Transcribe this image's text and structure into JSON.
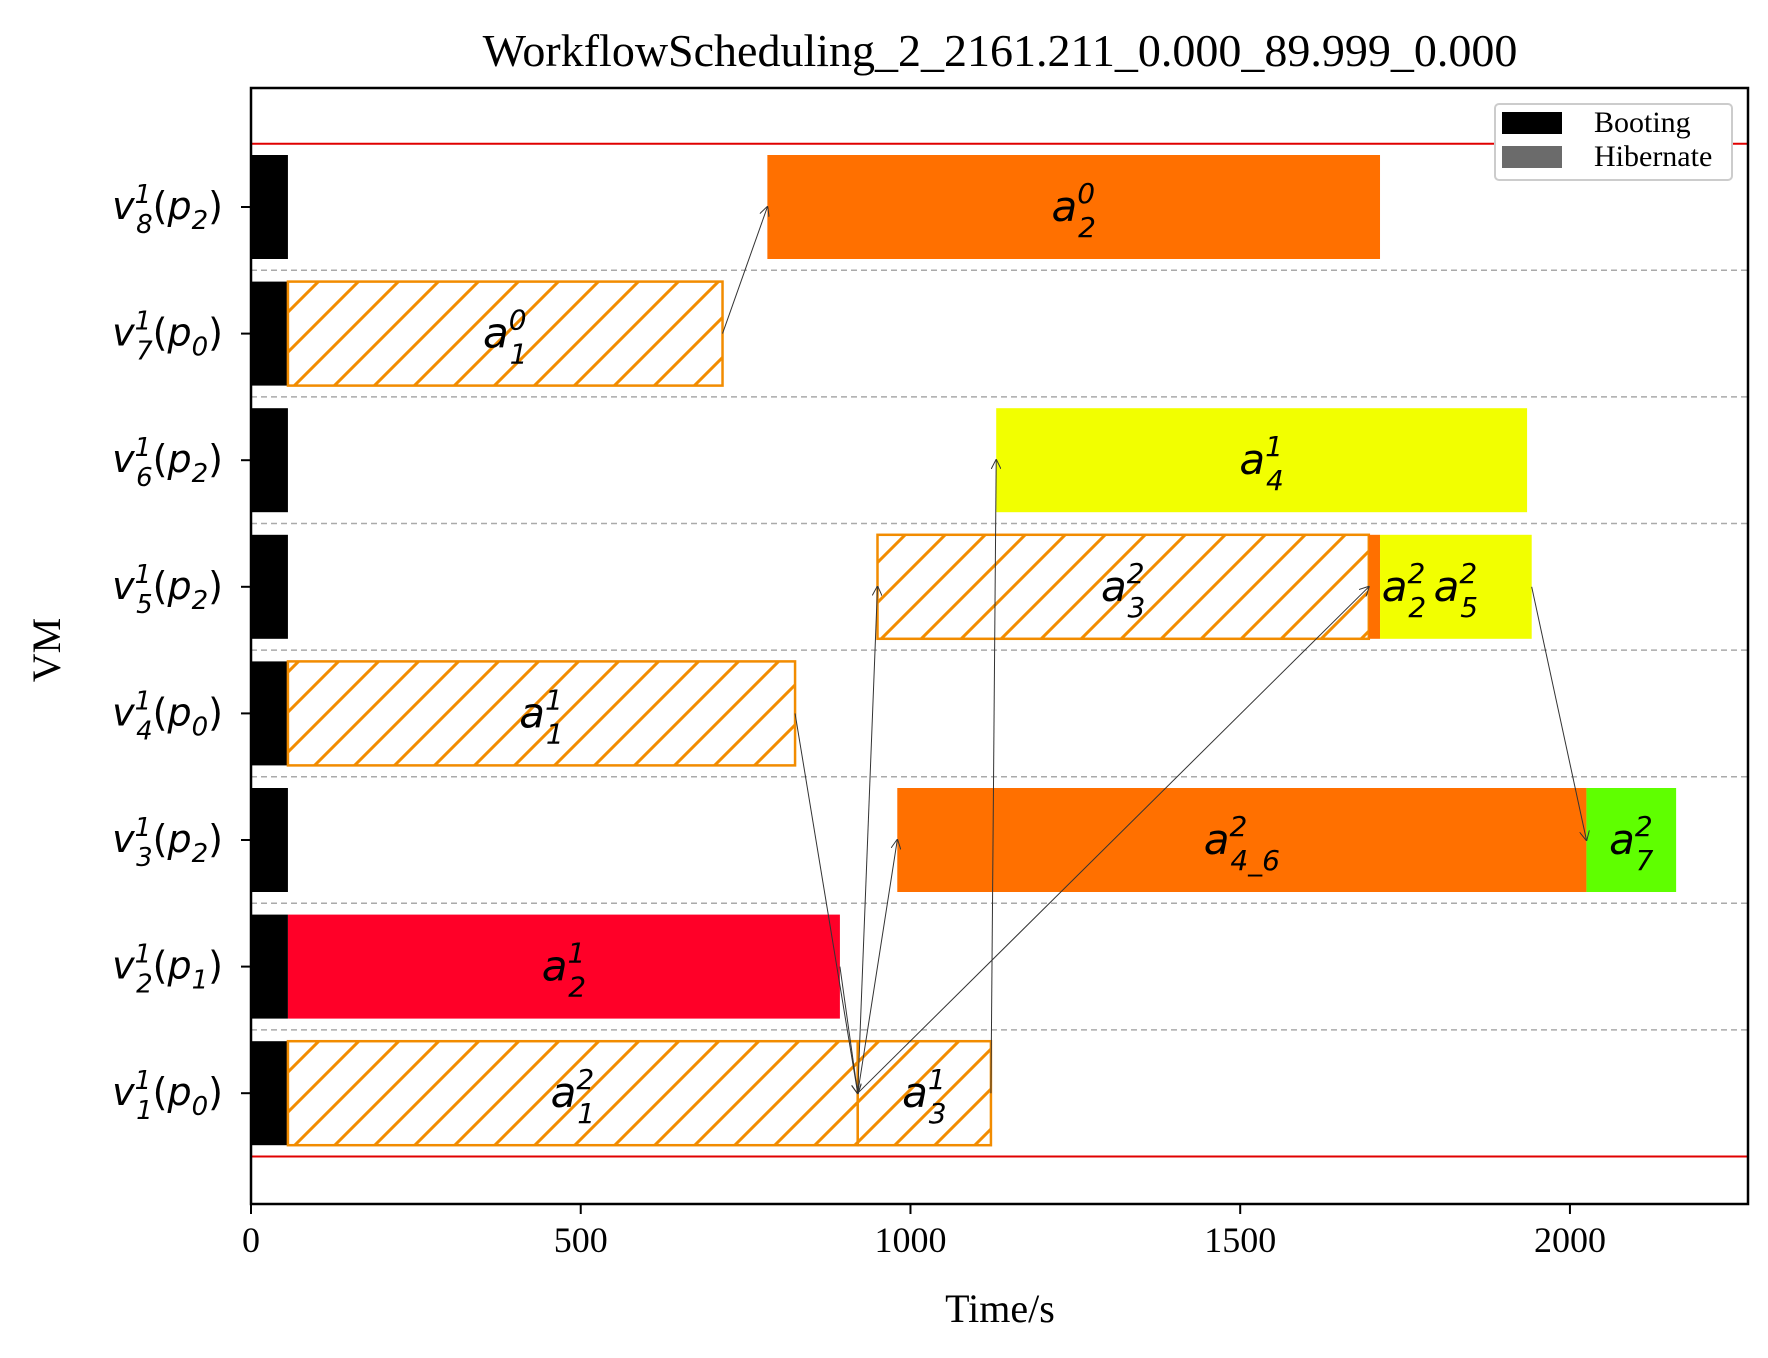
{
  "chart_data": {
    "type": "gantt",
    "title": "WorkflowScheduling_2_2161.211_0.000_89.999_0.000",
    "xlabel": "Time/s",
    "ylabel": "VM",
    "xlim": [
      0,
      2270
    ],
    "xticks": [
      0,
      500,
      1000,
      1500,
      2000
    ],
    "grid": "dashed row separators",
    "legend_position": "top-right",
    "legend": [
      {
        "name": "Booting",
        "color": "#000000"
      },
      {
        "name": "Hibernate",
        "color": "#6b6b6b"
      }
    ],
    "rows": [
      {
        "vm": "v",
        "vm_sub": "8",
        "vm_sup": "1",
        "param": "p",
        "param_sub": "2"
      },
      {
        "vm": "v",
        "vm_sub": "7",
        "vm_sup": "1",
        "param": "p",
        "param_sub": "0"
      },
      {
        "vm": "v",
        "vm_sub": "6",
        "vm_sup": "1",
        "param": "p",
        "param_sub": "2"
      },
      {
        "vm": "v",
        "vm_sub": "5",
        "vm_sup": "1",
        "param": "p",
        "param_sub": "2"
      },
      {
        "vm": "v",
        "vm_sub": "4",
        "vm_sup": "1",
        "param": "p",
        "param_sub": "0"
      },
      {
        "vm": "v",
        "vm_sub": "3",
        "vm_sup": "1",
        "param": "p",
        "param_sub": "2"
      },
      {
        "vm": "v",
        "vm_sub": "2",
        "vm_sup": "1",
        "param": "p",
        "param_sub": "1"
      },
      {
        "vm": "v",
        "vm_sub": "1",
        "vm_sup": "1",
        "param": "p",
        "param_sub": "0"
      }
    ],
    "booting": [
      {
        "row": 0,
        "start": 0,
        "end": 56
      },
      {
        "row": 1,
        "start": 0,
        "end": 56
      },
      {
        "row": 2,
        "start": 0,
        "end": 56
      },
      {
        "row": 3,
        "start": 0,
        "end": 56
      },
      {
        "row": 4,
        "start": 0,
        "end": 56
      },
      {
        "row": 5,
        "start": 0,
        "end": 56
      },
      {
        "row": 6,
        "start": 0,
        "end": 56
      },
      {
        "row": 7,
        "start": 0,
        "end": 56
      }
    ],
    "tasks": [
      {
        "row": 0,
        "start": 783,
        "end": 1712,
        "fill": "#ff7000",
        "hatch": false,
        "base": "a",
        "sub": "2",
        "sup": "0"
      },
      {
        "row": 1,
        "start": 56,
        "end": 715,
        "fill": "none",
        "hatch": true,
        "base": "a",
        "sub": "1",
        "sup": "0"
      },
      {
        "row": 2,
        "start": 1130,
        "end": 1935,
        "fill": "#f2ff00",
        "hatch": false,
        "base": "a",
        "sub": "4",
        "sup": "1"
      },
      {
        "row": 3,
        "start": 950,
        "end": 1695,
        "fill": "none",
        "hatch": true,
        "base": "a",
        "sub": "3",
        "sup": "2"
      },
      {
        "row": 3,
        "start": 1695,
        "end": 1712,
        "fill": "#ff7000",
        "hatch": false,
        "base": "a",
        "sub": "2",
        "sup": "2"
      },
      {
        "row": 3,
        "start": 1712,
        "end": 1942,
        "fill": "#f2ff00",
        "hatch": false,
        "base": "a",
        "sub": "5",
        "sup": "2"
      },
      {
        "row": 4,
        "start": 56,
        "end": 825,
        "fill": "none",
        "hatch": true,
        "base": "a",
        "sub": "1",
        "sup": "1"
      },
      {
        "row": 5,
        "start": 980,
        "end": 2025,
        "fill": "#ff7000",
        "hatch": false,
        "base": "a",
        "sub": "4_6",
        "sup": "2"
      },
      {
        "row": 5,
        "start": 2025,
        "end": 2161,
        "fill": "#5fff00",
        "hatch": false,
        "base": "a",
        "sub": "7",
        "sup": "2"
      },
      {
        "row": 6,
        "start": 56,
        "end": 893,
        "fill": "#ff0028",
        "hatch": false,
        "base": "a",
        "sub": "2",
        "sup": "1"
      },
      {
        "row": 7,
        "start": 56,
        "end": 920,
        "fill": "none",
        "hatch": true,
        "base": "a",
        "sub": "1",
        "sup": "2"
      },
      {
        "row": 7,
        "start": 920,
        "end": 1122,
        "fill": "none",
        "hatch": true,
        "base": "a",
        "sub": "3",
        "sup": "1"
      }
    ],
    "dependencies": [
      {
        "from_time": 715,
        "from_row": 1,
        "to_time": 783,
        "to_row": 0
      },
      {
        "from_time": 825,
        "from_row": 4,
        "to_time": 920,
        "to_row": 7
      },
      {
        "from_time": 893,
        "from_row": 6,
        "to_time": 920,
        "to_row": 7
      },
      {
        "from_time": 920,
        "from_row": 7,
        "to_time": 950,
        "to_row": 3
      },
      {
        "from_time": 920,
        "from_row": 7,
        "to_time": 980,
        "to_row": 5
      },
      {
        "from_time": 920,
        "from_row": 7,
        "to_time": 1695,
        "to_row": 3
      },
      {
        "from_time": 1122,
        "from_row": 7,
        "to_time": 1130,
        "to_row": 2
      },
      {
        "from_time": 1942,
        "from_row": 3,
        "to_time": 2025,
        "to_row": 5
      }
    ],
    "hlines": [
      {
        "row_offset": -0.5,
        "color": "#e00000"
      },
      {
        "row_offset": 7.5,
        "color": "#e00000"
      }
    ],
    "colors": {
      "hatch_edge": "#f28c00",
      "hline": "#e00000",
      "grid": "#aaaaaa"
    }
  }
}
